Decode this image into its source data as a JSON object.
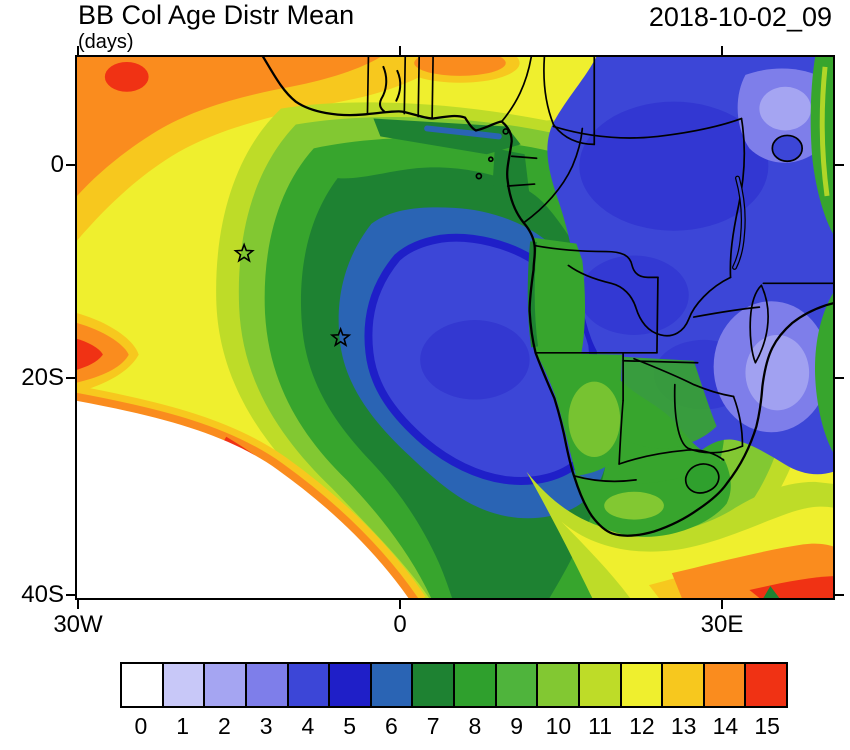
{
  "header": {
    "title": "BB Col Age Distr Mean",
    "units": "(days)",
    "timestamp": "2018-10-02_09"
  },
  "map": {
    "y_ticks": [
      "0",
      "20S",
      "40S"
    ],
    "x_ticks": [
      "30W",
      "0",
      "30E"
    ],
    "marker_symbol": "star",
    "marker_count": 2
  },
  "colorbar": {
    "labels": [
      "0",
      "1",
      "2",
      "3",
      "4",
      "5",
      "6",
      "7",
      "8",
      "9",
      "10",
      "11",
      "12",
      "13",
      "14",
      "15"
    ],
    "colors": [
      "#FFFFFF",
      "#C8C8F8",
      "#A5A5F2",
      "#7E7EEA",
      "#3C46D7",
      "#1F1FC8",
      "#2A64B4",
      "#1E8232",
      "#2FA02D",
      "#4FB43C",
      "#82C832",
      "#BEDC28",
      "#EFEF2E",
      "#F7C81E",
      "#FA8C1E",
      "#F03214"
    ]
  },
  "chart_data": {
    "type": "heatmap",
    "title": "BB Col Age Distr Mean",
    "units": "days",
    "timestamp": "2018-10-02_09",
    "x_axis": {
      "ticks": [
        "30W",
        "0",
        "30E"
      ]
    },
    "y_axis": {
      "ticks": [
        "0",
        "20S",
        "40S"
      ]
    },
    "levels": [
      0,
      1,
      2,
      3,
      4,
      5,
      6,
      7,
      8,
      9,
      10,
      11,
      12,
      13,
      14,
      15
    ],
    "palette": [
      "#FFFFFF",
      "#C8C8F8",
      "#A5A5F2",
      "#7E7EEA",
      "#3C46D7",
      "#1F1FC8",
      "#2A64B4",
      "#1E8232",
      "#2FA02D",
      "#4FB43C",
      "#82C832",
      "#BEDC28",
      "#EFEF2E",
      "#F7C81E",
      "#FA8C1E",
      "#F03214"
    ],
    "features": [
      "Oldest ages (13-15, orange/red) in far northwest corner, along the top-left ocean edge and at the bottom-right corner",
      "Large yellow (12) field over the eastern tropical Atlantic",
      "Concentric green-to-blue plume (ages 4-10) over the SE Atlantic centered near 5E-10S with blue core",
      "Youngest ages (1-5, blue/purple) over central and southern Africa interior",
      "White region (age 0) over the far southwest Atlantic bounded by a sharp red/orange rim",
      "Two star markers over the Atlantic plume"
    ]
  }
}
